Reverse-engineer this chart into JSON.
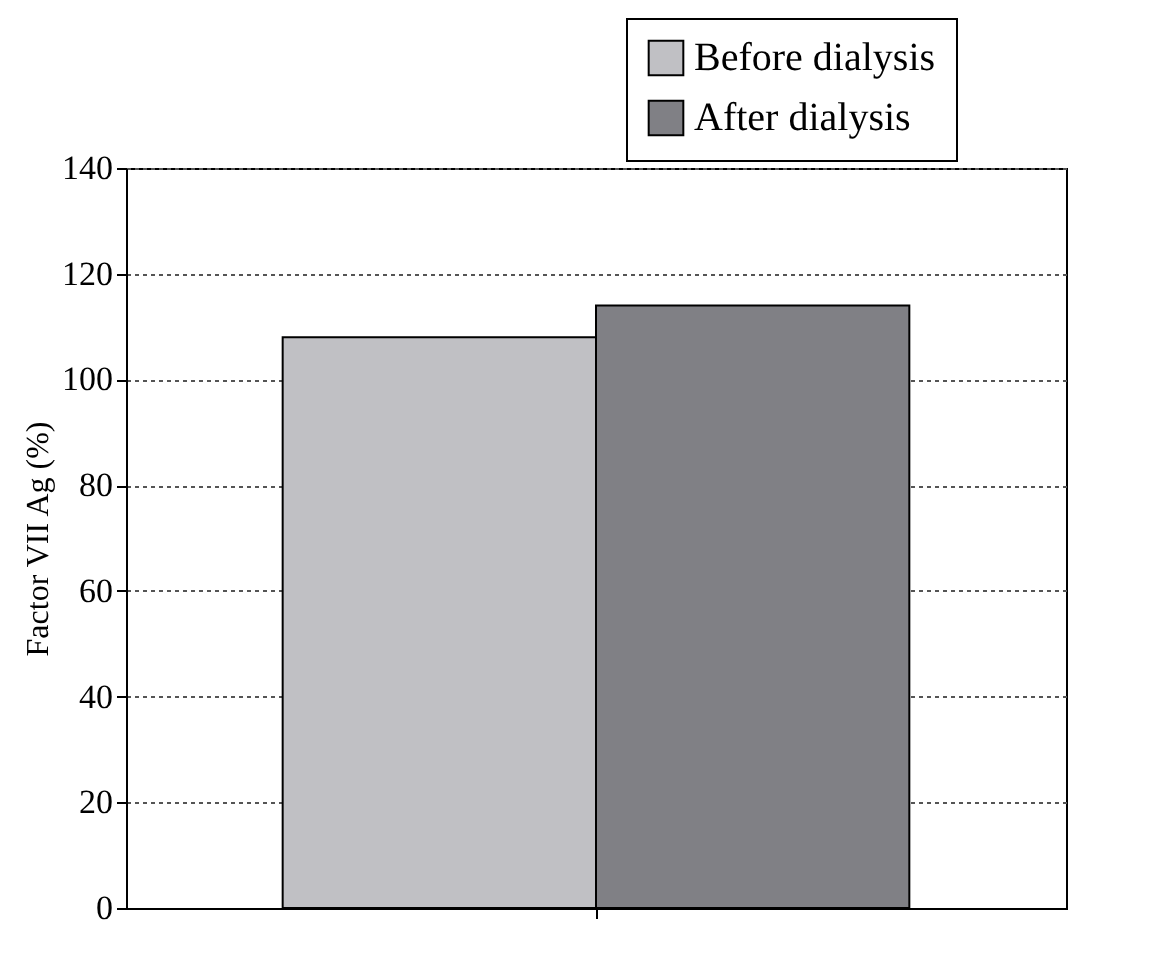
{
  "chart_data": {
    "type": "bar",
    "ylabel": "Factor VII Ag (%)",
    "categories": [
      null
    ],
    "series": [
      {
        "name": "Before dialysis",
        "color": "#c0c0c4",
        "values": [
          108
        ]
      },
      {
        "name": "After dialysis",
        "color": "#808085",
        "values": [
          114
        ]
      }
    ],
    "ylim": [
      0,
      140
    ],
    "yticks": [
      0,
      20,
      40,
      60,
      80,
      100,
      120,
      140
    ],
    "grid": "y",
    "legend": "top right",
    "tick_labels": "y"
  }
}
